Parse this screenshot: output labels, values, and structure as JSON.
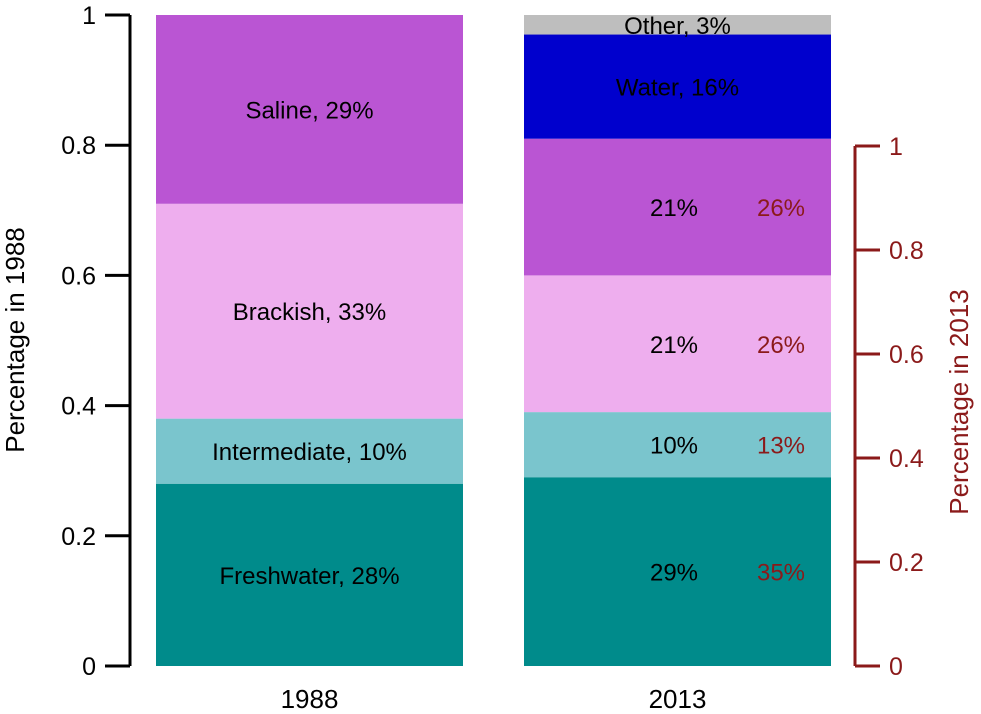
{
  "chart_data": {
    "type": "bar",
    "stacked": true,
    "categories": [
      "1988",
      "2013"
    ],
    "left_axis": {
      "label": "Percentage in 1988",
      "ylim": [
        0,
        1
      ],
      "ticks": [
        "0",
        "0.2",
        "0.4",
        "0.6",
        "0.8",
        "1"
      ],
      "color": "#000000"
    },
    "right_axis": {
      "label": "Percentage in 2013",
      "ylim": [
        0,
        1
      ],
      "ticks": [
        "0",
        "0.2",
        "0.4",
        "0.6",
        "0.8",
        "1"
      ],
      "color": "#8B1A1A",
      "spans_fraction": [
        0,
        0.805
      ]
    },
    "bars": [
      {
        "category": "1988",
        "segments": [
          {
            "id": "freshwater",
            "value": 0.28,
            "color": "#008B8B",
            "label": "Freshwater, 28%"
          },
          {
            "id": "intermediate",
            "value": 0.1,
            "color": "#7AC5CD",
            "label": "Intermediate, 10%"
          },
          {
            "id": "brackish",
            "value": 0.33,
            "color": "#EEAEEE",
            "label": "Brackish, 33%"
          },
          {
            "id": "saline",
            "value": 0.29,
            "color": "#BA55D3",
            "label": "Saline, 29%"
          }
        ]
      },
      {
        "category": "2013",
        "segments": [
          {
            "id": "freshwater",
            "value": 0.29,
            "color": "#008B8B",
            "label": "29%",
            "label2": "35%"
          },
          {
            "id": "intermediate",
            "value": 0.1,
            "color": "#7AC5CD",
            "label": "10%",
            "label2": "13%"
          },
          {
            "id": "brackish",
            "value": 0.21,
            "color": "#EEAEEE",
            "label": "21%",
            "label2": "26%"
          },
          {
            "id": "saline",
            "value": 0.21,
            "color": "#BA55D3",
            "label": "21%",
            "label2": "26%"
          },
          {
            "id": "water",
            "value": 0.16,
            "color": "#0000CD",
            "label": "Water, 16%"
          },
          {
            "id": "other",
            "value": 0.03,
            "color": "#BEBEBE",
            "label": "Other, 3%"
          }
        ]
      }
    ],
    "label2_color": "#8B1A1A",
    "grid": false,
    "legend": "none"
  }
}
